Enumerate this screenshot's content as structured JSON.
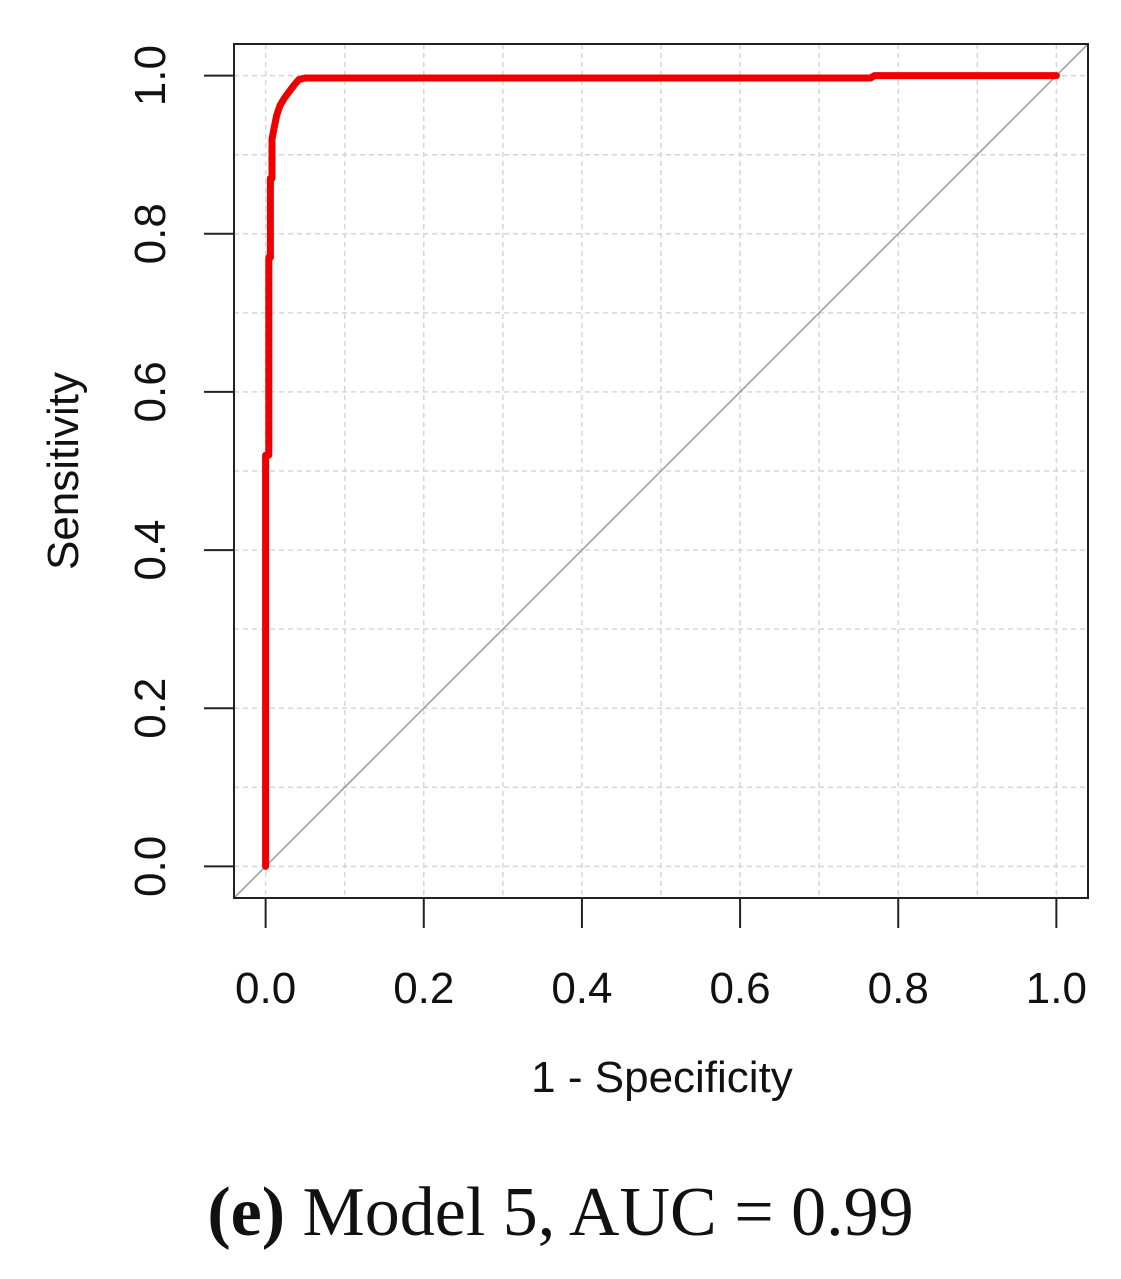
{
  "caption": {
    "tag": "(e)",
    "text": "Model 5, AUC = 0.99"
  },
  "chart_data": {
    "type": "line",
    "xlabel": "1 - Specificity",
    "ylabel": "Sensitivity",
    "xlim": [
      -0.04,
      1.04
    ],
    "ylim": [
      -0.04,
      1.04
    ],
    "x_ticks": [
      0.0,
      0.2,
      0.4,
      0.6,
      0.8,
      1.0
    ],
    "x_tick_labels": [
      "0.0",
      "0.2",
      "0.4",
      "0.6",
      "0.8",
      "1.0"
    ],
    "y_ticks": [
      0.0,
      0.2,
      0.4,
      0.6,
      0.8,
      1.0
    ],
    "y_tick_labels": [
      "0.0",
      "0.2",
      "0.4",
      "0.6",
      "0.8",
      "1.0"
    ],
    "grid": true,
    "series": [
      {
        "color": "#ee0000",
        "x": [
          0.0,
          0.0,
          0.002,
          0.004,
          0.004,
          0.006,
          0.006,
          0.008,
          0.008,
          0.012,
          0.014,
          0.018,
          0.024,
          0.03,
          0.036,
          0.042,
          0.05,
          0.07,
          0.3,
          0.6,
          0.765,
          0.77,
          1.0
        ],
        "y": [
          0.0,
          0.52,
          0.52,
          0.52,
          0.77,
          0.77,
          0.87,
          0.87,
          0.92,
          0.94,
          0.95,
          0.962,
          0.972,
          0.98,
          0.988,
          0.995,
          0.997,
          0.997,
          0.997,
          0.997,
          0.997,
          1.0,
          1.0
        ]
      }
    ],
    "reference_line": {
      "color": "#999999",
      "x": [
        -0.04,
        1.04
      ],
      "y": [
        -0.04,
        1.04
      ]
    }
  }
}
